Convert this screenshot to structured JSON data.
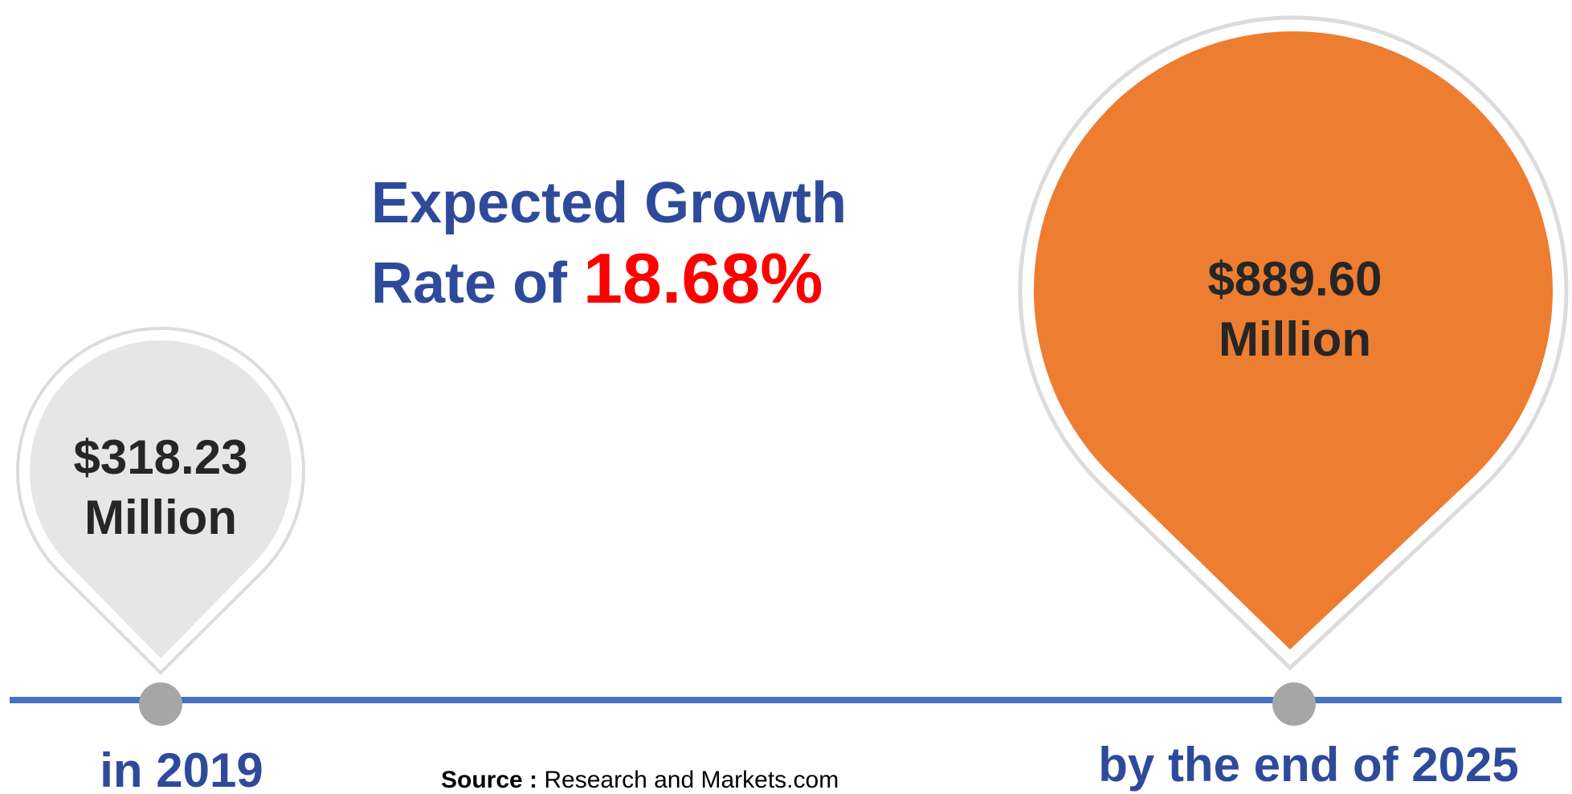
{
  "title": {
    "line1": "Expected Growth",
    "line2_prefix": "Rate of",
    "rate": "18.68%"
  },
  "start": {
    "value": "$318.23",
    "unit": "Million",
    "label": "in 2019"
  },
  "end": {
    "value": "$889.60",
    "unit": "Million",
    "label": "by the end of 2025"
  },
  "source": {
    "label": "Source :",
    "text": "Research and Markets.com"
  }
}
